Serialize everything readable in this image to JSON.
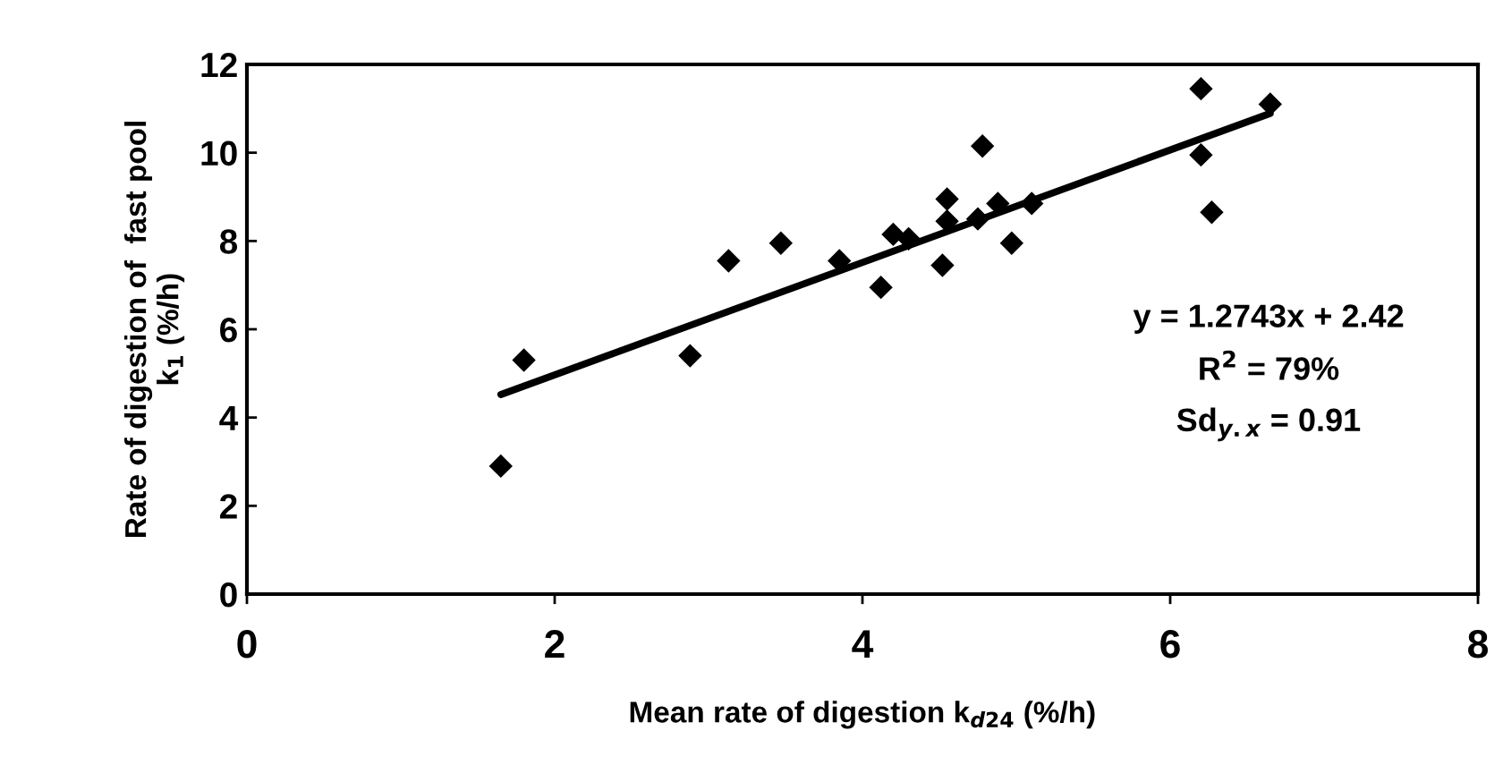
{
  "chart_data": {
    "type": "scatter",
    "xlabel": "Mean rate of digestion k$_{d24}$ (%/h)",
    "ylabel": "Rate of digestion of  fast pool\nk$_{1}$ (%/h)",
    "annotations": [
      "y = 1.2743x + 2.42",
      "R$^{2}$ = 79%",
      "Sd$_{y.x}$ = 0.91"
    ],
    "series": [
      {
        "color": "#000000",
        "marker": "diamond",
        "x": [
          1.65,
          1.8,
          2.88,
          3.13,
          3.47,
          3.85,
          4.12,
          4.2,
          4.3,
          4.52,
          4.55,
          4.55,
          4.75,
          4.78,
          4.88,
          4.97,
          5.1,
          6.2,
          6.2,
          6.27,
          6.65
        ],
        "values": [
          2.9,
          5.3,
          5.4,
          7.55,
          7.95,
          7.55,
          6.95,
          8.15,
          8.05,
          7.45,
          8.95,
          8.45,
          8.5,
          10.15,
          8.85,
          7.95,
          8.85,
          11.45,
          9.95,
          8.65,
          11.1
        ]
      },
      {
        "type": "line",
        "color": "#000000",
        "marker": "none",
        "line_style": "solid",
        "x": [
          1.65,
          6.65
        ],
        "values": [
          4.52,
          10.89
        ]
      }
    ],
    "xlim": [
      0,
      8
    ],
    "ylim": [
      0,
      12
    ],
    "xticks": [
      0,
      2,
      4,
      6,
      8
    ],
    "yticks": [
      0,
      2,
      4,
      6,
      8,
      10,
      12
    ],
    "grid": false,
    "legend": false
  }
}
